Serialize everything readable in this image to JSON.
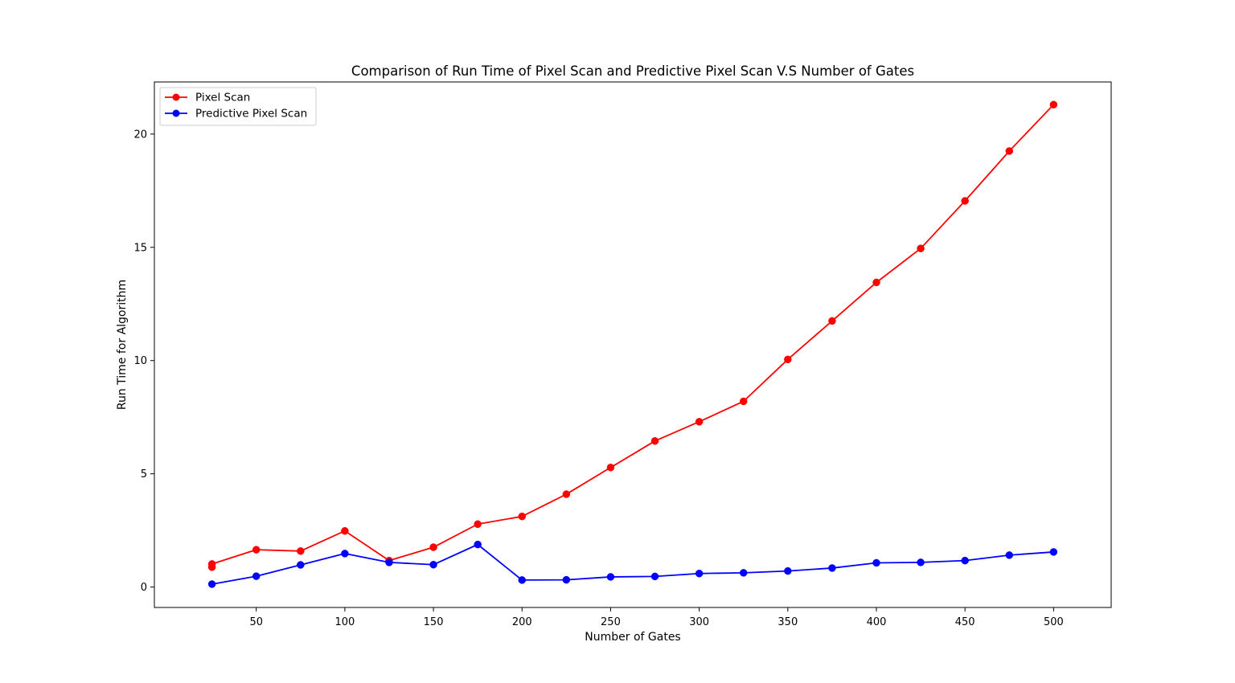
{
  "chart_data": {
    "type": "line",
    "title": "Comparison of Run Time of Pixel Scan and Predictive Pixel Scan V.S Number of Gates",
    "xlabel": "Number of Gates",
    "ylabel": "Run Time for Algorithm",
    "xlim": [
      -7.5,
      532.5
    ],
    "ylim": [
      -0.9,
      22.3
    ],
    "xticks": [
      50,
      100,
      150,
      200,
      250,
      300,
      350,
      400,
      450,
      500
    ],
    "yticks": [
      0,
      5,
      10,
      15,
      20
    ],
    "grid": false,
    "legend_position": "upper-left",
    "series": [
      {
        "name": "Pixel Scan",
        "color": "#ff0000",
        "marker": "circle",
        "x": [
          25,
          25,
          50,
          75,
          100,
          125,
          150,
          175,
          200,
          225,
          250,
          275,
          300,
          325,
          350,
          375,
          400,
          425,
          450,
          475,
          500
        ],
        "y": [
          0.88,
          1.02,
          1.65,
          1.59,
          2.48,
          1.17,
          1.76,
          2.78,
          3.12,
          4.1,
          5.28,
          6.45,
          7.3,
          8.2,
          10.05,
          11.75,
          13.45,
          14.95,
          17.05,
          19.25,
          21.3
        ]
      },
      {
        "name": "Predictive Pixel Scan",
        "color": "#0000ff",
        "marker": "circle",
        "x": [
          25,
          50,
          75,
          100,
          125,
          150,
          175,
          200,
          225,
          250,
          275,
          300,
          325,
          350,
          375,
          400,
          425,
          450,
          475,
          500
        ],
        "y": [
          0.13,
          0.48,
          0.98,
          1.48,
          1.09,
          0.99,
          1.88,
          0.31,
          0.32,
          0.45,
          0.47,
          0.6,
          0.63,
          0.71,
          0.84,
          1.07,
          1.09,
          1.17,
          1.41,
          1.55
        ]
      }
    ]
  }
}
